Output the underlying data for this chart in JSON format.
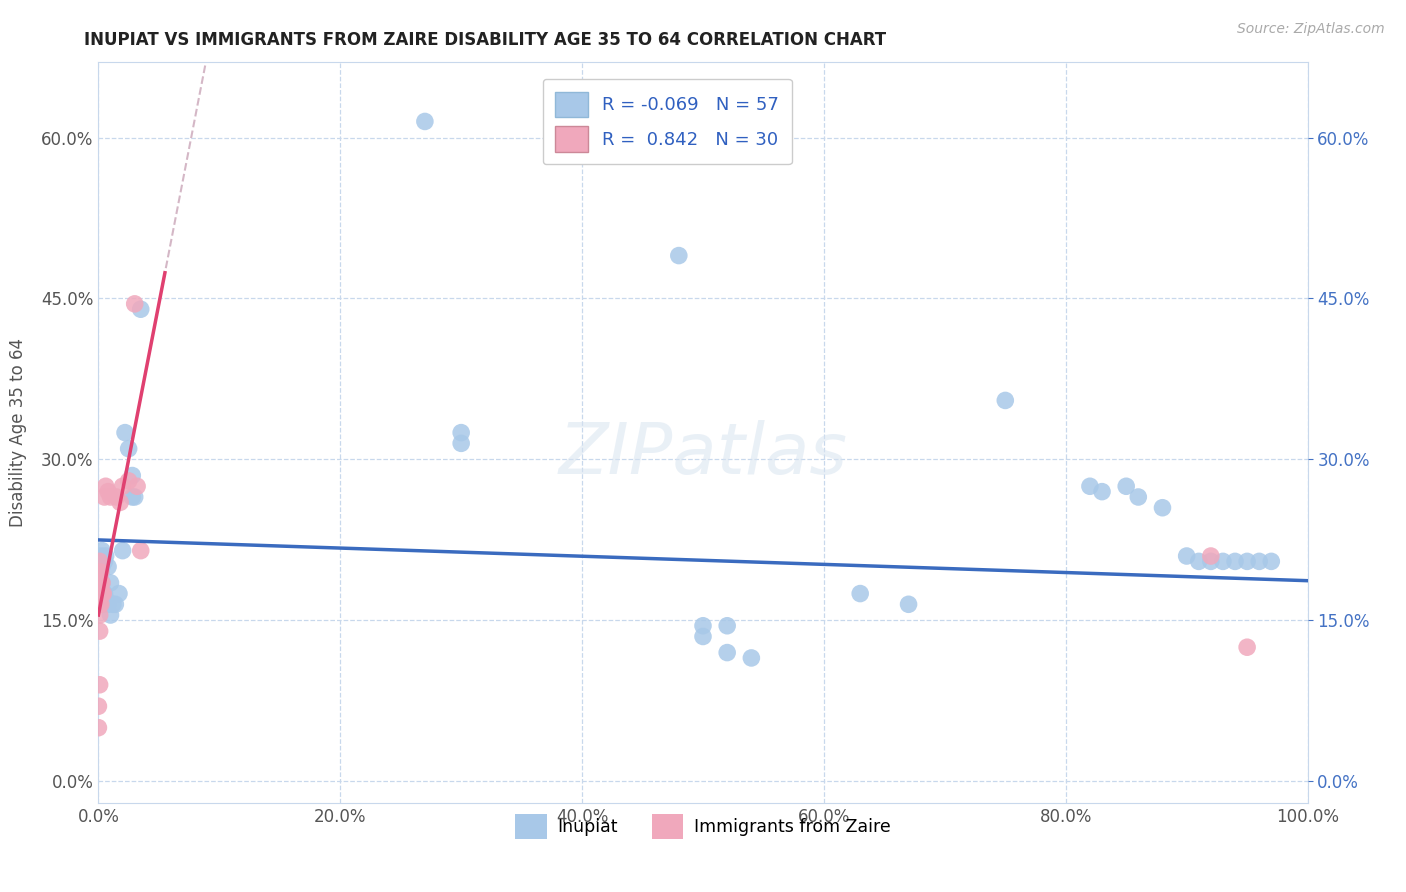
{
  "title": "INUPIAT VS IMMIGRANTS FROM ZAIRE DISABILITY AGE 35 TO 64 CORRELATION CHART",
  "source": "Source: ZipAtlas.com",
  "ylabel": "Disability Age 35 to 64",
  "legend_label_blue": "Inupiat",
  "legend_label_pink": "Immigrants from Zaire",
  "R_blue": -0.069,
  "N_blue": 57,
  "R_pink": 0.842,
  "N_pink": 30,
  "blue_color": "#a8c8e8",
  "pink_color": "#f0a8bc",
  "trendline_blue": "#3a6bbf",
  "trendline_pink": "#e04070",
  "trendline_dashed_color": "#d0b0c0",
  "xlim": [
    0.0,
    1.0
  ],
  "ylim": [
    -0.02,
    0.67
  ],
  "ytick_vals": [
    0.0,
    0.15,
    0.3,
    0.45,
    0.6
  ],
  "xtick_vals": [
    0.0,
    0.2,
    0.4,
    0.6,
    0.8,
    1.0
  ],
  "bg_color": "#ffffff",
  "grid_color": "#c8d8ec",
  "right_axis_color": "#4472c4",
  "blue_points": [
    [
      0.001,
      0.205
    ],
    [
      0.001,
      0.195
    ],
    [
      0.001,
      0.195
    ],
    [
      0.001,
      0.175
    ],
    [
      0.002,
      0.21
    ],
    [
      0.002,
      0.195
    ],
    [
      0.002,
      0.185
    ],
    [
      0.002,
      0.175
    ],
    [
      0.003,
      0.215
    ],
    [
      0.003,
      0.2
    ],
    [
      0.003,
      0.185
    ],
    [
      0.003,
      0.165
    ],
    [
      0.004,
      0.205
    ],
    [
      0.004,
      0.175
    ],
    [
      0.005,
      0.205
    ],
    [
      0.005,
      0.175
    ],
    [
      0.006,
      0.21
    ],
    [
      0.006,
      0.17
    ],
    [
      0.008,
      0.2
    ],
    [
      0.008,
      0.165
    ],
    [
      0.01,
      0.185
    ],
    [
      0.01,
      0.155
    ],
    [
      0.012,
      0.165
    ],
    [
      0.014,
      0.165
    ],
    [
      0.017,
      0.175
    ],
    [
      0.02,
      0.215
    ],
    [
      0.022,
      0.325
    ],
    [
      0.025,
      0.31
    ],
    [
      0.028,
      0.285
    ],
    [
      0.028,
      0.265
    ],
    [
      0.03,
      0.265
    ],
    [
      0.035,
      0.44
    ],
    [
      0.27,
      0.615
    ],
    [
      0.3,
      0.325
    ],
    [
      0.3,
      0.315
    ],
    [
      0.48,
      0.49
    ],
    [
      0.5,
      0.145
    ],
    [
      0.5,
      0.135
    ],
    [
      0.52,
      0.145
    ],
    [
      0.52,
      0.12
    ],
    [
      0.54,
      0.115
    ],
    [
      0.63,
      0.175
    ],
    [
      0.67,
      0.165
    ],
    [
      0.75,
      0.355
    ],
    [
      0.82,
      0.275
    ],
    [
      0.83,
      0.27
    ],
    [
      0.85,
      0.275
    ],
    [
      0.86,
      0.265
    ],
    [
      0.88,
      0.255
    ],
    [
      0.9,
      0.21
    ],
    [
      0.91,
      0.205
    ],
    [
      0.92,
      0.205
    ],
    [
      0.93,
      0.205
    ],
    [
      0.94,
      0.205
    ],
    [
      0.95,
      0.205
    ],
    [
      0.96,
      0.205
    ],
    [
      0.97,
      0.205
    ]
  ],
  "pink_points": [
    [
      0.0,
      0.05
    ],
    [
      0.0,
      0.07
    ],
    [
      0.001,
      0.09
    ],
    [
      0.001,
      0.14
    ],
    [
      0.001,
      0.155
    ],
    [
      0.001,
      0.165
    ],
    [
      0.001,
      0.175
    ],
    [
      0.001,
      0.185
    ],
    [
      0.001,
      0.195
    ],
    [
      0.001,
      0.205
    ],
    [
      0.002,
      0.195
    ],
    [
      0.002,
      0.185
    ],
    [
      0.002,
      0.175
    ],
    [
      0.002,
      0.165
    ],
    [
      0.003,
      0.185
    ],
    [
      0.003,
      0.175
    ],
    [
      0.004,
      0.175
    ],
    [
      0.005,
      0.265
    ],
    [
      0.006,
      0.275
    ],
    [
      0.008,
      0.27
    ],
    [
      0.01,
      0.265
    ],
    [
      0.015,
      0.265
    ],
    [
      0.018,
      0.26
    ],
    [
      0.02,
      0.275
    ],
    [
      0.025,
      0.28
    ],
    [
      0.03,
      0.445
    ],
    [
      0.032,
      0.275
    ],
    [
      0.035,
      0.215
    ],
    [
      0.92,
      0.21
    ],
    [
      0.95,
      0.125
    ]
  ],
  "pink_trendline_slope": 5.8,
  "pink_trendline_intercept": 0.155,
  "blue_trendline_slope": -0.038,
  "blue_trendline_intercept": 0.225
}
